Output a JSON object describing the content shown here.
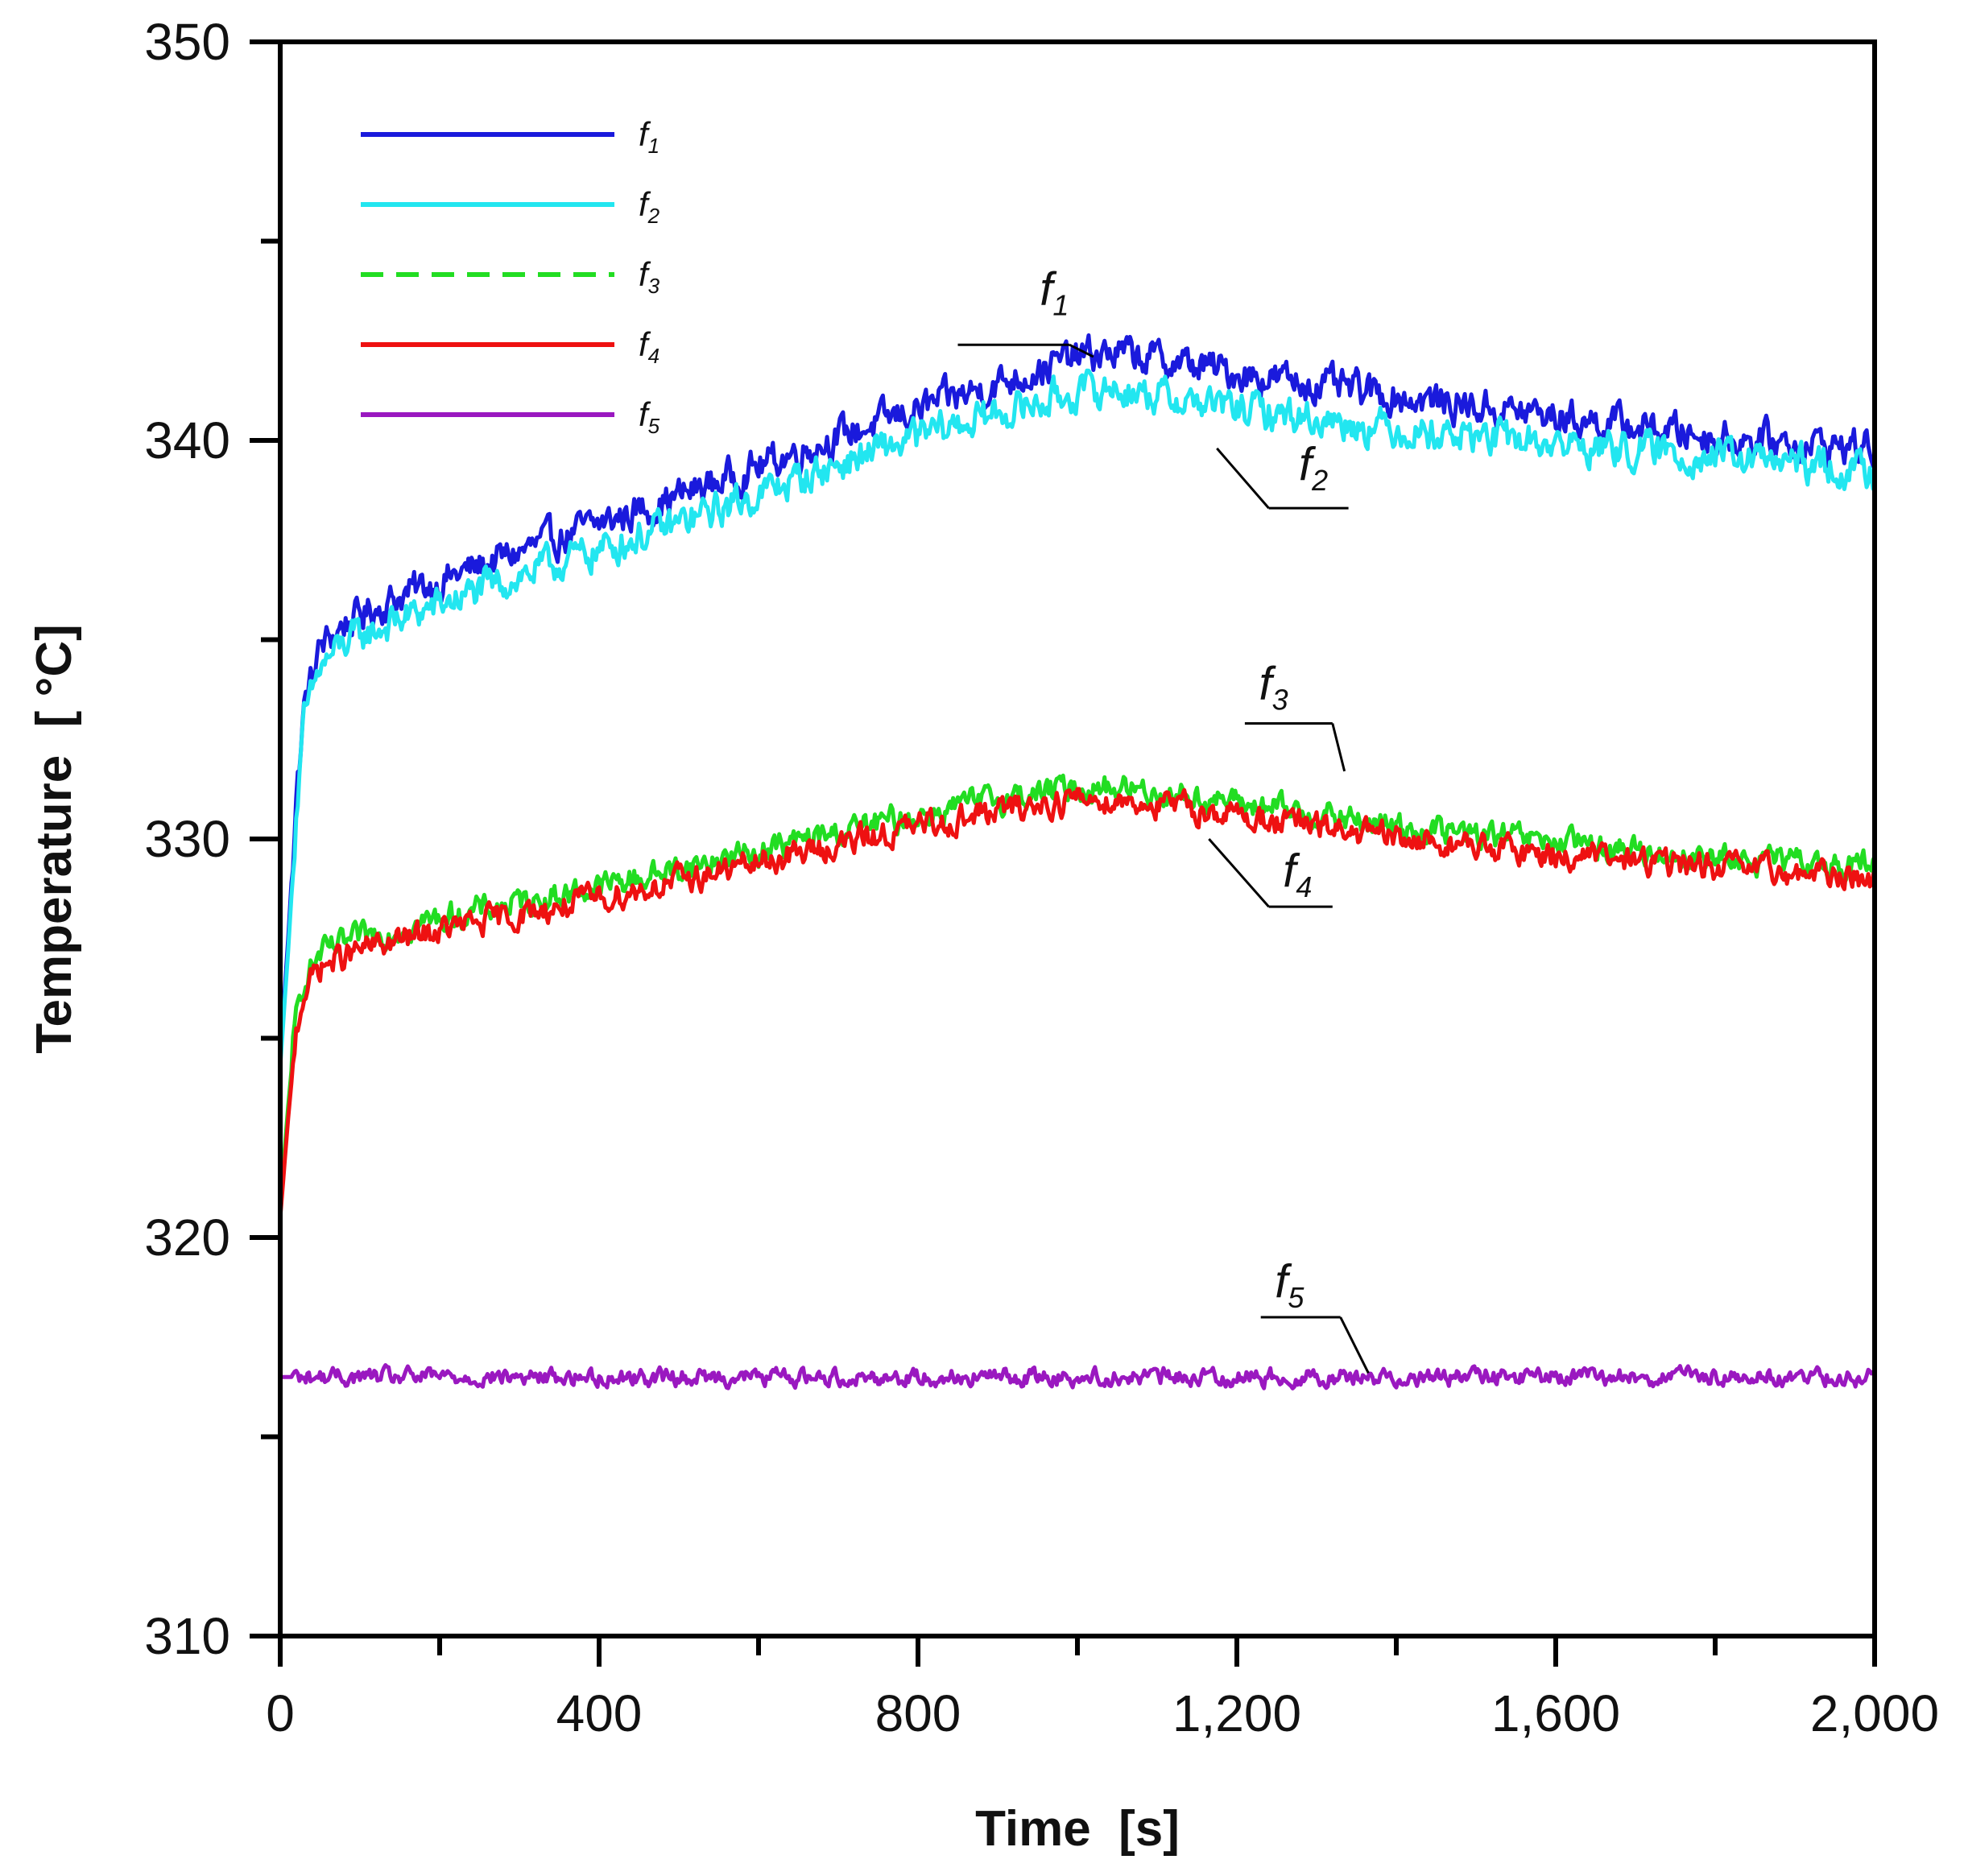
{
  "chart_data": {
    "type": "line",
    "title": "",
    "xlabel": "Time  [s]",
    "ylabel": "Temperature  [ °C]",
    "xlim": [
      0,
      2000
    ],
    "ylim": [
      310,
      350
    ],
    "x_ticks": [
      0,
      400,
      800,
      1200,
      1600,
      2000
    ],
    "x_tick_labels": [
      "0",
      "400",
      "800",
      "1,200",
      "1,600",
      "2,000"
    ],
    "y_ticks": [
      310,
      320,
      330,
      340,
      350
    ],
    "y_tick_labels": [
      "310",
      "320",
      "330",
      "340",
      "350"
    ],
    "legend_position": "top-left",
    "grid": false,
    "series": [
      {
        "name": "f1",
        "base": "f",
        "sub": "1",
        "color": "#1a1adc",
        "dash": false,
        "noise": 0.45,
        "points": [
          [
            0,
            324.5
          ],
          [
            10,
            327.5
          ],
          [
            20,
            331
          ],
          [
            30,
            333.3
          ],
          [
            50,
            334.8
          ],
          [
            80,
            335.4
          ],
          [
            150,
            336.1
          ],
          [
            300,
            337.2
          ],
          [
            500,
            338.6
          ],
          [
            700,
            340.1
          ],
          [
            850,
            341.1
          ],
          [
            1000,
            342.1
          ],
          [
            1050,
            342.2
          ],
          [
            1200,
            341.7
          ],
          [
            1400,
            341.1
          ],
          [
            1600,
            340.6
          ],
          [
            1800,
            340.1
          ],
          [
            2000,
            339.8
          ]
        ]
      },
      {
        "name": "f2",
        "base": "f",
        "sub": "2",
        "color": "#22e6f0",
        "dash": false,
        "noise": 0.45,
        "points": [
          [
            0,
            324.3
          ],
          [
            10,
            327.2
          ],
          [
            20,
            330.6
          ],
          [
            30,
            332.9
          ],
          [
            50,
            334.3
          ],
          [
            80,
            334.9
          ],
          [
            150,
            335.5
          ],
          [
            300,
            336.6
          ],
          [
            500,
            337.9
          ],
          [
            700,
            339.4
          ],
          [
            850,
            340.4
          ],
          [
            1000,
            341.2
          ],
          [
            1050,
            341.3
          ],
          [
            1200,
            340.8
          ],
          [
            1400,
            340.3
          ],
          [
            1600,
            339.9
          ],
          [
            1800,
            339.6
          ],
          [
            2000,
            339.2
          ]
        ]
      },
      {
        "name": "f3",
        "base": "f",
        "sub": "3",
        "color": "#22dd22",
        "dash": true,
        "noise": 0.35,
        "points": [
          [
            0,
            320.8
          ],
          [
            10,
            323.3
          ],
          [
            20,
            325.5
          ],
          [
            30,
            326.5
          ],
          [
            50,
            327.1
          ],
          [
            100,
            327.5
          ],
          [
            200,
            328.0
          ],
          [
            400,
            328.8
          ],
          [
            600,
            329.7
          ],
          [
            800,
            330.6
          ],
          [
            900,
            331.0
          ],
          [
            1000,
            331.3
          ],
          [
            1050,
            331.3
          ],
          [
            1200,
            330.9
          ],
          [
            1400,
            330.3
          ],
          [
            1600,
            329.9
          ],
          [
            1800,
            329.5
          ],
          [
            2000,
            329.3
          ]
        ]
      },
      {
        "name": "f4",
        "base": "f",
        "sub": "4",
        "color": "#ee1111",
        "dash": false,
        "noise": 0.35,
        "points": [
          [
            0,
            320.5
          ],
          [
            10,
            323.0
          ],
          [
            20,
            325.2
          ],
          [
            30,
            326.2
          ],
          [
            50,
            326.8
          ],
          [
            100,
            327.2
          ],
          [
            200,
            327.7
          ],
          [
            400,
            328.5
          ],
          [
            600,
            329.4
          ],
          [
            800,
            330.3
          ],
          [
            900,
            330.7
          ],
          [
            1000,
            331.0
          ],
          [
            1050,
            331.0
          ],
          [
            1200,
            330.6
          ],
          [
            1400,
            330.0
          ],
          [
            1600,
            329.6
          ],
          [
            1800,
            329.3
          ],
          [
            2000,
            329.0
          ]
        ]
      },
      {
        "name": "f5",
        "base": "f",
        "sub": "5",
        "color": "#9a18c0",
        "dash": false,
        "noise": 0.22,
        "points": [
          [
            0,
            316.5
          ],
          [
            500,
            316.5
          ],
          [
            1000,
            316.5
          ],
          [
            1500,
            316.5
          ],
          [
            2000,
            316.5
          ]
        ]
      }
    ],
    "annotations": [
      {
        "label_base": "f",
        "label_sub": "1",
        "label_x": 975,
        "label_y": 343.6,
        "shelf": [
          850,
          990
        ],
        "shelf_y": 342.4,
        "arrow_to": [
          1020,
          342.1
        ]
      },
      {
        "label_base": "f",
        "label_sub": "2",
        "label_x": 1300,
        "label_y": 339.2,
        "shelf": [
          1240,
          1340
        ],
        "shelf_y": 338.3,
        "arrow_to": [
          1175,
          339.8
        ]
      },
      {
        "label_base": "f",
        "label_sub": "3",
        "label_x": 1250,
        "label_y": 333.7,
        "shelf": [
          1210,
          1320
        ],
        "shelf_y": 332.9,
        "arrow_to": [
          1335,
          331.7
        ]
      },
      {
        "label_base": "f",
        "label_sub": "4",
        "label_x": 1280,
        "label_y": 329.0,
        "shelf": [
          1240,
          1320
        ],
        "shelf_y": 328.3,
        "arrow_to": [
          1165,
          330.0
        ]
      },
      {
        "label_base": "f",
        "label_sub": "5",
        "label_x": 1270,
        "label_y": 318.7,
        "shelf": [
          1230,
          1330
        ],
        "shelf_y": 318.0,
        "arrow_to": [
          1365,
          316.6
        ]
      }
    ]
  }
}
